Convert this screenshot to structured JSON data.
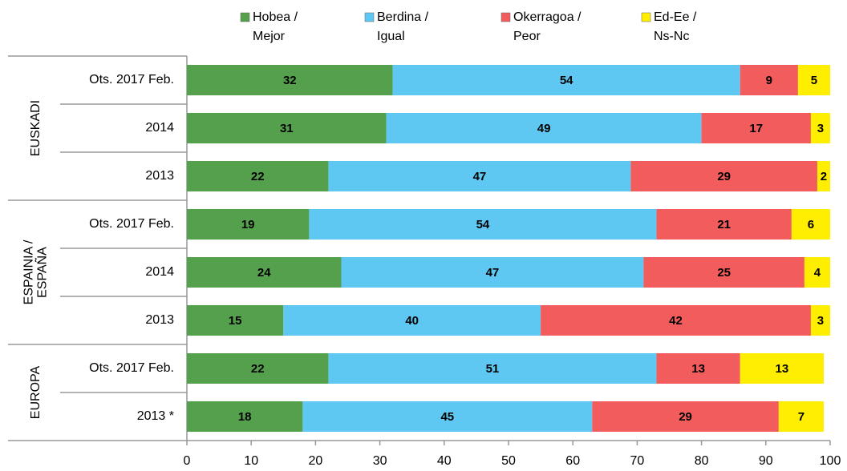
{
  "chart_data": {
    "type": "stacked-bar-horizontal",
    "groups": [
      {
        "label": [
          "EUSKADI"
        ],
        "categories": [
          "Ots. 2017 Feb.",
          "2014",
          "2013"
        ]
      },
      {
        "label": [
          "ESPAINIA /",
          "ESPAÑA"
        ],
        "categories": [
          "Ots. 2017 Feb.",
          "2014",
          "2013"
        ]
      },
      {
        "label": [
          "EUROPA"
        ],
        "categories": [
          "Ots. 2017 Feb.",
          "2013 *"
        ]
      }
    ],
    "series": [
      {
        "name": [
          "Hobea /",
          "Mejor"
        ],
        "color": "#55a04c",
        "values": [
          32,
          31,
          22,
          19,
          24,
          15,
          22,
          18
        ]
      },
      {
        "name": [
          "Berdina /",
          "Igual"
        ],
        "color": "#5ec8f2",
        "values": [
          54,
          49,
          47,
          54,
          47,
          40,
          51,
          45
        ]
      },
      {
        "name": [
          "Okerragoa /",
          "Peor"
        ],
        "color": "#f25c5c",
        "values": [
          9,
          17,
          29,
          21,
          25,
          42,
          13,
          29
        ]
      },
      {
        "name": [
          "Ed-Ee /",
          "Ns-Nc"
        ],
        "color": "#ffee00",
        "values": [
          5,
          3,
          2,
          6,
          4,
          3,
          13,
          7
        ]
      }
    ],
    "xlim": [
      0,
      100
    ],
    "xticks": [
      0,
      10,
      20,
      30,
      40,
      50,
      60,
      70,
      80,
      90,
      100
    ],
    "legend": "top"
  }
}
